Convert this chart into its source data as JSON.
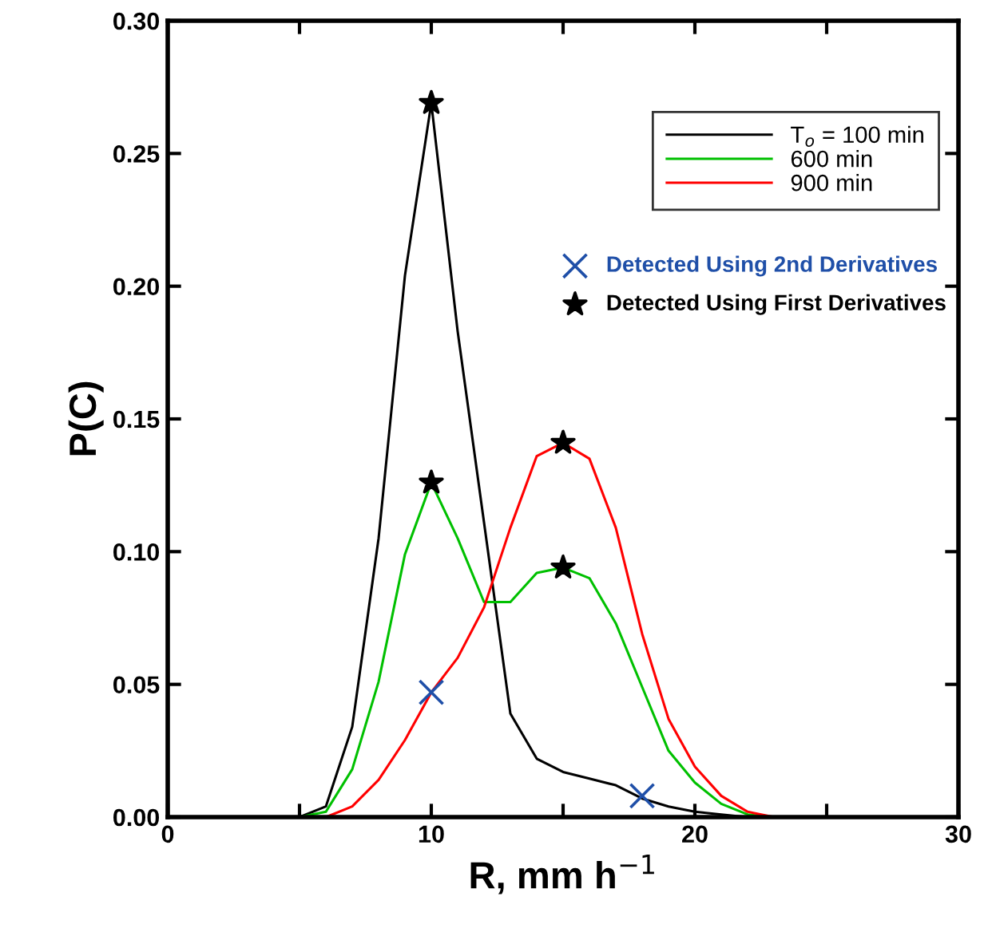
{
  "chart_data": {
    "type": "line",
    "xlabel": "R, mm h$^{−1}$",
    "ylabel": "P(C)",
    "xlim": [
      0,
      30
    ],
    "xticks": [
      0,
      {
        "value": 5,
        "label": null
      },
      10,
      {
        "value": 15,
        "label": null
      },
      20,
      {
        "value": 25,
        "label": null
      },
      30
    ],
    "ylim": [
      0,
      0.3
    ],
    "yticks": [
      {
        "value": 0,
        "label": "0.00"
      },
      {
        "value": 0.05,
        "label": "0.05"
      },
      {
        "value": 0.1,
        "label": "0.10"
      },
      {
        "value": 0.15,
        "label": "0.15"
      },
      {
        "value": 0.2,
        "label": "0.20"
      },
      {
        "value": 0.25,
        "label": "0.25"
      },
      {
        "value": 0.3,
        "label": "0.30"
      }
    ],
    "grid": false,
    "legend": "top right",
    "marker": "none",
    "line_style": "solid",
    "series": [
      {
        "name": "T$_{o}$ = 100 min",
        "color": "#000000",
        "x": [
          5,
          6,
          7,
          8,
          9,
          10,
          11,
          12,
          13,
          14,
          15,
          16,
          17,
          18,
          19,
          20,
          21,
          22
        ],
        "values": [
          0,
          0.004,
          0.034,
          0.105,
          0.204,
          0.269,
          0.183,
          0.111,
          0.039,
          0.022,
          0.017,
          0.0145,
          0.012,
          0.007,
          0.004,
          0.002,
          0.001,
          0
        ]
      },
      {
        "name": "600 min",
        "color": "#00c000",
        "x": [
          5,
          6,
          7,
          8,
          9,
          10,
          11,
          12,
          13,
          14,
          15,
          16,
          17,
          18,
          19,
          20,
          21,
          22,
          23
        ],
        "values": [
          0,
          0.002,
          0.018,
          0.051,
          0.099,
          0.126,
          0.105,
          0.081,
          0.081,
          0.092,
          0.094,
          0.09,
          0.073,
          0.049,
          0.025,
          0.013,
          0.005,
          0.001,
          0
        ]
      },
      {
        "name": "900 min",
        "color": "#ff0000",
        "x": [
          6,
          7,
          8,
          9,
          10,
          11,
          12,
          13,
          14,
          15,
          16,
          17,
          18,
          19,
          20,
          21,
          22,
          23
        ],
        "values": [
          0,
          0.004,
          0.014,
          0.029,
          0.047,
          0.06,
          0.079,
          0.109,
          0.136,
          0.141,
          0.135,
          0.109,
          0.069,
          0.037,
          0.019,
          0.008,
          0.002,
          0
        ]
      },
      {
        "name": "Detected Using 2nd Derivatives",
        "type": "scatter",
        "marker": "cross",
        "color": "#1f4fa8",
        "x": [
          10,
          18
        ],
        "values": [
          0.047,
          0.008
        ]
      },
      {
        "name": "Detected Using First Derivatives",
        "type": "scatter",
        "marker": "star",
        "color": "#000000",
        "x": [
          10,
          10,
          15,
          15
        ],
        "values": [
          0.269,
          0.126,
          0.141,
          0.094
        ]
      }
    ]
  }
}
